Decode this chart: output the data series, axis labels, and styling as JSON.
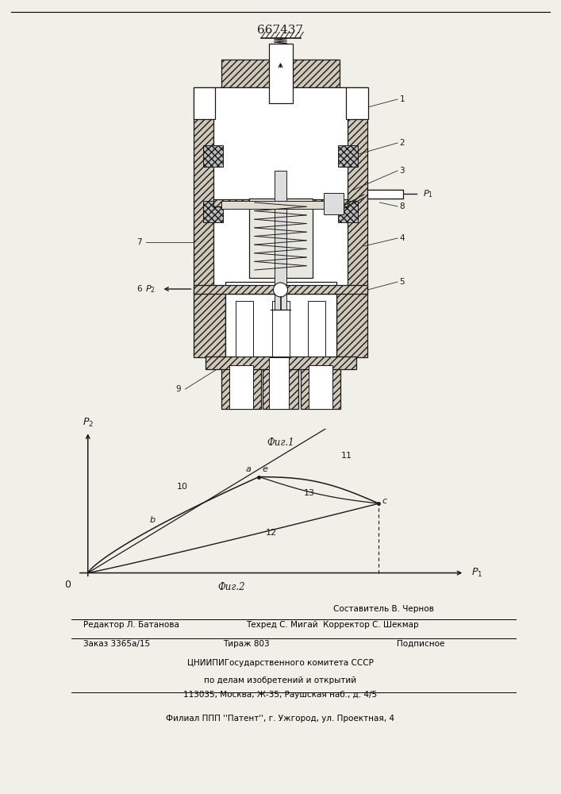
{
  "title": "667437",
  "bg": "#f0efe8",
  "lc": "#1a1a1a",
  "hatch_fc": "#d0c8b8",
  "white": "#ffffff",
  "gray_dark": "#888888",
  "gray_med": "#aaaaaa",
  "footer_col1": "Редактор Л. Батанова",
  "footer_col2": "Техред С. Мигай",
  "footer_col3": "Корректор С. Шекмар",
  "footer_author": "Составитель В. Чернов",
  "footer_order": "Заказ 3365а/15",
  "footer_tirage": "Тираж 803",
  "footer_type": "Подписное",
  "footer_org1": "ЦНИИПИГосударственного комитета СССР",
  "footer_org2": "по делам изобретений и открытий",
  "footer_addr": "113035, Москва, Ж-35, Раушская наб., д. 4/5",
  "footer_branch": "Филиал ППП ''Патент'', г. Ужгород, ул. Проектная, 4"
}
